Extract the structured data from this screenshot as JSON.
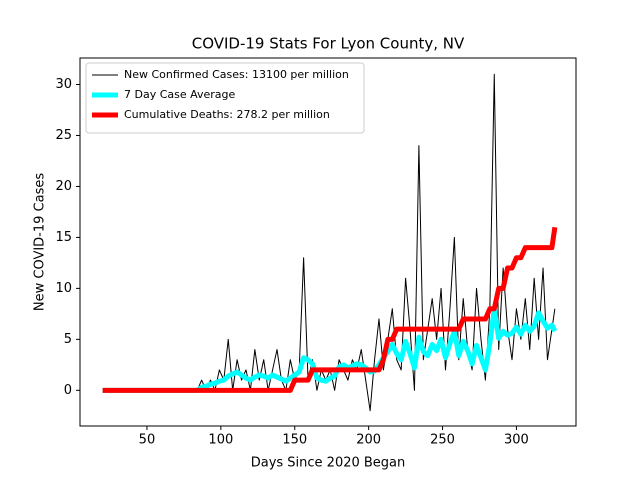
{
  "chart_data": {
    "type": "line",
    "title": "COVID-19 Stats For Lyon County, NV",
    "x_label": "Days Since 2020 Began",
    "y_label": "New COVID-19 Cases",
    "xlim": [
      4.7,
      340.3
    ],
    "ylim": [
      -3.5,
      32.6
    ],
    "xticks": [
      50,
      100,
      150,
      200,
      250,
      300
    ],
    "yticks": [
      0,
      5,
      10,
      15,
      20,
      25,
      30
    ],
    "legend": "upper left",
    "x": [
      20,
      50,
      80,
      84,
      87,
      90,
      93,
      96,
      99,
      102,
      105,
      108,
      111,
      114,
      117,
      120,
      123,
      126,
      129,
      132,
      135,
      138,
      141,
      144,
      147,
      150,
      153,
      156,
      159,
      162,
      165,
      168,
      171,
      174,
      177,
      180,
      183,
      186,
      189,
      192,
      195,
      198,
      201,
      204,
      207,
      210,
      213,
      216,
      219,
      222,
      225,
      228,
      231,
      234,
      237,
      240,
      243,
      246,
      249,
      252,
      255,
      258,
      261,
      264,
      267,
      270,
      273,
      276,
      279,
      282,
      285,
      288,
      291,
      294,
      297,
      300,
      303,
      306,
      309,
      312,
      315,
      318,
      321,
      324,
      326
    ],
    "series": [
      {
        "name": "New Confirmed Cases: 13100 per million",
        "color": "#000000",
        "width": 1,
        "values": [
          0,
          0,
          0,
          0,
          1,
          0,
          1,
          0,
          2,
          1,
          5,
          0,
          3,
          1,
          2,
          0,
          4,
          1,
          3,
          0,
          2,
          4,
          1,
          0,
          3,
          1,
          2,
          13,
          1,
          3,
          0,
          2,
          1,
          2,
          0,
          3,
          2,
          1,
          3,
          2,
          4,
          1,
          -2,
          3,
          7,
          2,
          5,
          8,
          3,
          2,
          11,
          6,
          0,
          24,
          3,
          6,
          9,
          5,
          10,
          2,
          8,
          15,
          3,
          9,
          4,
          2,
          10,
          5,
          1,
          8,
          31,
          4,
          12,
          6,
          3,
          8,
          5,
          9,
          4,
          11,
          5,
          12,
          3,
          6,
          8
        ]
      },
      {
        "name": "7 Day Case Average",
        "color": "#00ffff",
        "width": 5,
        "values": [
          0,
          0,
          0,
          0,
          0.3,
          0.4,
          0.6,
          0.7,
          0.9,
          1,
          1.4,
          1.6,
          1.8,
          1.5,
          1.2,
          1,
          1.3,
          1.5,
          1.4,
          1.2,
          1.5,
          1.3,
          1.1,
          0.9,
          1.2,
          1.5,
          1.8,
          3.2,
          3,
          2.6,
          1.2,
          1,
          0.9,
          1.2,
          1.4,
          2.3,
          2.5,
          2.2,
          2.4,
          2.6,
          2.5,
          2.2,
          1.8,
          1.9,
          2.5,
          3.2,
          3.8,
          4.5,
          3.6,
          3,
          4.8,
          3.6,
          2.2,
          5.2,
          3.8,
          3.4,
          4.5,
          3.9,
          5,
          3.2,
          4.6,
          5.8,
          3.4,
          4.8,
          3.9,
          2.6,
          4.4,
          3.2,
          2,
          4.6,
          8,
          5.1,
          5.8,
          5.4,
          5.6,
          6.2,
          5.5,
          6.4,
          5.8,
          6.3,
          7.6,
          6.8,
          6.1,
          6.4,
          5.8
        ]
      },
      {
        "name": "Cumulative Deaths: 278.2 per million",
        "color": "#ff0000",
        "width": 5,
        "values": [
          0,
          0,
          0,
          0,
          0,
          0,
          0,
          0,
          0,
          0,
          0,
          0,
          0,
          0,
          0,
          0,
          0,
          0,
          0,
          0,
          0,
          0,
          0,
          0,
          0,
          1,
          1,
          1,
          1,
          2,
          2,
          2,
          2,
          2,
          2,
          2,
          2,
          2,
          2,
          2,
          2,
          2,
          2,
          2,
          2,
          3,
          5,
          5,
          6,
          6,
          6,
          6,
          6,
          6,
          6,
          6,
          6,
          6,
          6,
          6,
          6,
          6,
          6,
          7,
          7,
          7,
          7,
          7,
          7,
          8,
          8,
          10,
          10,
          12,
          12,
          13,
          13,
          14,
          14,
          14,
          14,
          14,
          14,
          14,
          16
        ]
      }
    ]
  }
}
